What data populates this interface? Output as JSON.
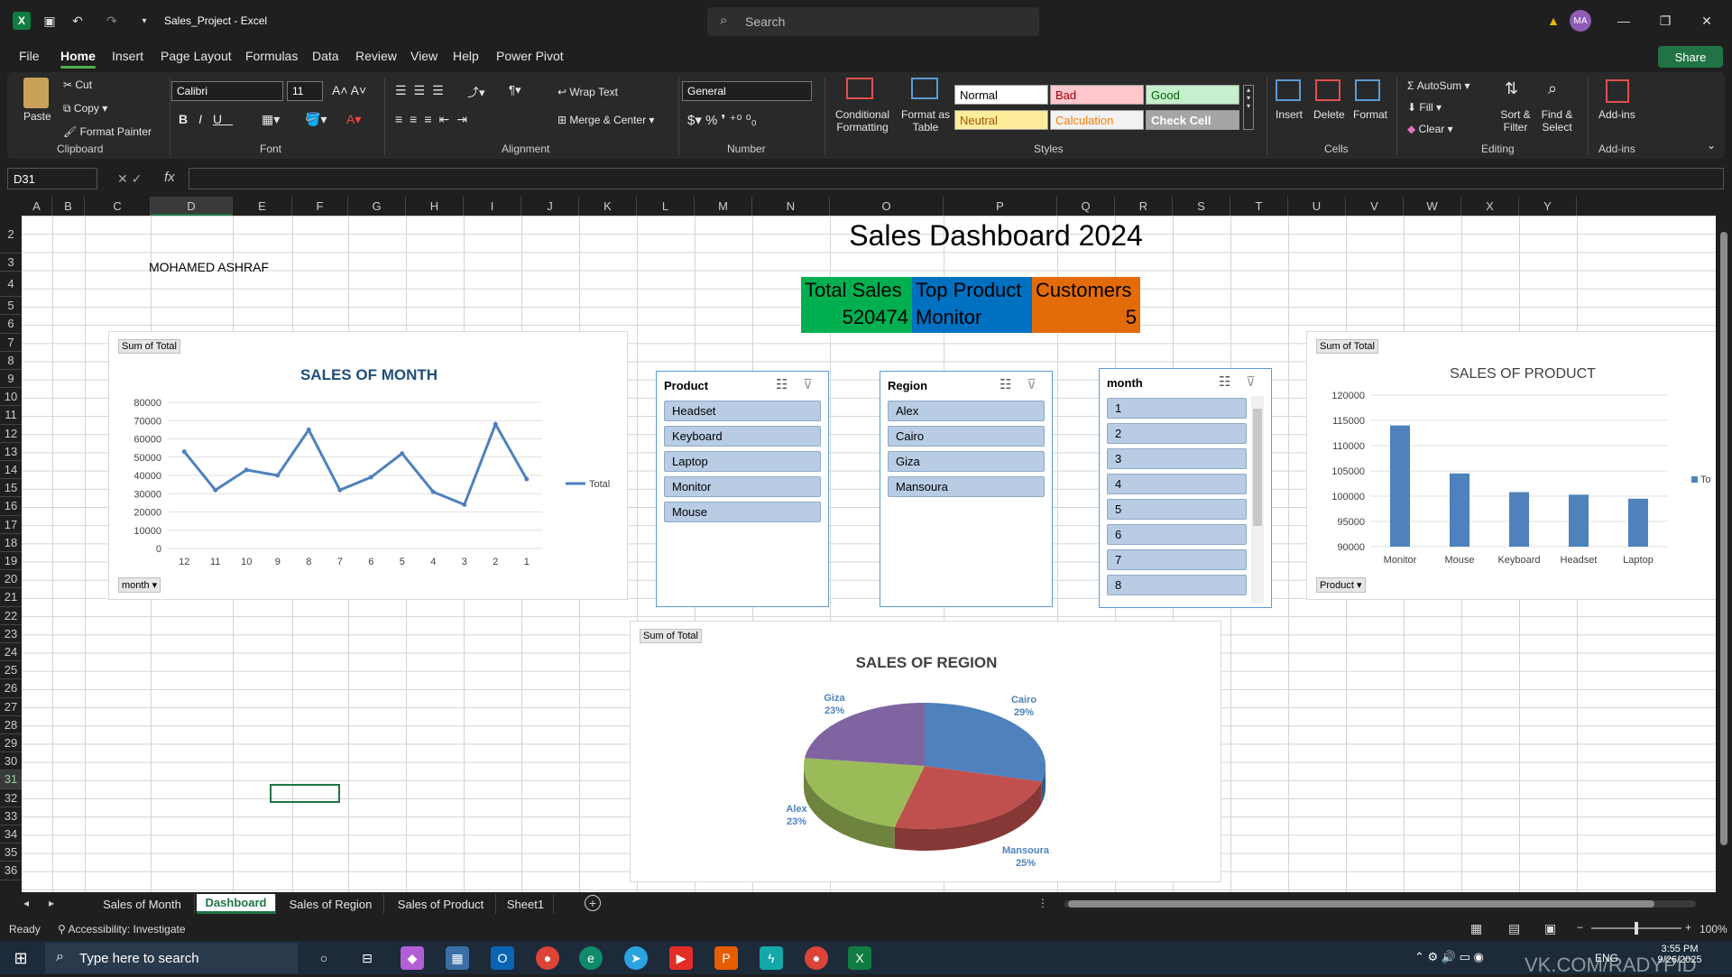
{
  "window": {
    "title": "Sales_Project  -  Excel",
    "search_placeholder": "Search",
    "user_initials": "MA"
  },
  "menu": {
    "tabs": [
      "File",
      "Home",
      "Insert",
      "Page Layout",
      "Formulas",
      "Data",
      "Review",
      "View",
      "Help",
      "Power Pivot"
    ],
    "active": "Home",
    "share_label": "Share"
  },
  "ribbon": {
    "clipboard": {
      "paste": "Paste",
      "cut": "Cut",
      "copy": "Copy",
      "format_painter": "Format Painter",
      "label": "Clipboard"
    },
    "font": {
      "name": "Calibri",
      "size": "11",
      "label": "Font"
    },
    "alignment": {
      "wrap_text": "Wrap Text",
      "merge_center": "Merge & Center",
      "label": "Alignment"
    },
    "number": {
      "format": "General",
      "label": "Number"
    },
    "styles": {
      "conditional": "Conditional Formatting",
      "format_table": "Format as Table",
      "normal": "Normal",
      "bad": "Bad",
      "good": "Good",
      "neutral": "Neutral",
      "calculation": "Calculation",
      "check_cell": "Check Cell",
      "label": "Styles"
    },
    "cells": {
      "insert": "Insert",
      "delete": "Delete",
      "format": "Format",
      "label": "Cells"
    },
    "editing": {
      "autosum": "AutoSum",
      "fill": "Fill",
      "clear": "Clear",
      "sort_filter": "Sort & Filter",
      "find_select": "Find & Select",
      "label": "Editing"
    },
    "addins": {
      "addins": "Add-ins",
      "label": "Add-ins"
    }
  },
  "formula_bar": {
    "name_box": "D31",
    "fx": "fx",
    "value": ""
  },
  "columns": [
    "A",
    "B",
    "C",
    "D",
    "E",
    "F",
    "G",
    "H",
    "I",
    "J",
    "K",
    "L",
    "M",
    "N",
    "O",
    "P",
    "Q",
    "R",
    "S",
    "T",
    "U",
    "V",
    "W",
    "X",
    "Y"
  ],
  "rows": [
    "2",
    "3",
    "4",
    "5",
    "6",
    "7",
    "8",
    "9",
    "10",
    "11",
    "12",
    "13",
    "14",
    "15",
    "16",
    "17",
    "18",
    "19",
    "20",
    "21",
    "22",
    "23",
    "24",
    "25",
    "26",
    "27",
    "28",
    "29",
    "30",
    "31",
    "32",
    "33",
    "34",
    "35",
    "36"
  ],
  "sheet": {
    "title": "Sales Dashboard 2024",
    "author": "MOHAMED ASHRAF",
    "kpis": {
      "total_sales_label": "Total Sales",
      "total_sales_value": "520474",
      "top_product_label": "Top Product",
      "top_product_value": "Monitor",
      "customers_label": "Customers",
      "customers_value": "5"
    },
    "colors": {
      "green": "#00b050",
      "blue": "#0070c0",
      "orange": "#e36c09"
    }
  },
  "slicers": {
    "product": {
      "title": "Product",
      "items": [
        "Headset",
        "Keyboard",
        "Laptop",
        "Monitor",
        "Mouse"
      ]
    },
    "region": {
      "title": "Region",
      "items": [
        "Alex",
        "Cairo",
        "Giza",
        "Mansoura"
      ]
    },
    "month": {
      "title": "month",
      "items": [
        "1",
        "2",
        "3",
        "4",
        "5",
        "6",
        "7",
        "8"
      ]
    }
  },
  "chart_data": [
    {
      "type": "line",
      "title": "SALES OF MONTH",
      "pivot_label": "Sum of Total",
      "field_button": "month",
      "legend": "Total",
      "categories": [
        "12",
        "11",
        "10",
        "9",
        "8",
        "7",
        "6",
        "5",
        "4",
        "3",
        "2",
        "1"
      ],
      "series": [
        {
          "name": "Total",
          "values": [
            53000,
            32000,
            43000,
            40000,
            65000,
            32000,
            39000,
            52000,
            31000,
            24000,
            68000,
            38000
          ]
        }
      ],
      "y_ticks": [
        "80000",
        "70000",
        "60000",
        "50000",
        "40000",
        "30000",
        "20000",
        "10000",
        "0"
      ],
      "ylim": [
        0,
        80000
      ],
      "color": "#4f81bd"
    },
    {
      "type": "bar",
      "title": "SALES OF PRODUCT",
      "pivot_label": "Sum of Total",
      "field_button": "Product",
      "legend": "To",
      "categories": [
        "Monitor",
        "Mouse",
        "Keyboard",
        "Headset",
        "Laptop"
      ],
      "values": [
        114000,
        104500,
        100800,
        100300,
        99500
      ],
      "y_ticks": [
        "120000",
        "115000",
        "110000",
        "105000",
        "100000",
        "95000",
        "90000"
      ],
      "ylim": [
        90000,
        120000
      ],
      "color": "#4f81bd"
    },
    {
      "type": "pie",
      "title": "SALES OF REGION",
      "pivot_label": "Sum of Total",
      "slices": [
        {
          "label": "Cairo",
          "pct": "29%",
          "value": 29,
          "color": "#4f81bd"
        },
        {
          "label": "Mansoura",
          "pct": "25%",
          "value": 25,
          "color": "#c0504d"
        },
        {
          "label": "Alex",
          "pct": "23%",
          "value": 23,
          "color": "#9bbb59"
        },
        {
          "label": "Giza",
          "pct": "23%",
          "value": 23,
          "color": "#8064a2"
        }
      ]
    }
  ],
  "sheet_tabs": [
    "Sales of Month",
    "Dashboard",
    "Sales of Region",
    "Sales of Product",
    "Sheet1"
  ],
  "active_tab": "Dashboard",
  "status": {
    "ready": "Ready",
    "accessibility": "Accessibility: Investigate",
    "zoom": "100%"
  },
  "taskbar": {
    "search_placeholder": "Type here to search",
    "lang": "ENG",
    "time": "3:55 PM",
    "date": "9/26/2025",
    "watermark": "VK.COM/RADYPID"
  }
}
